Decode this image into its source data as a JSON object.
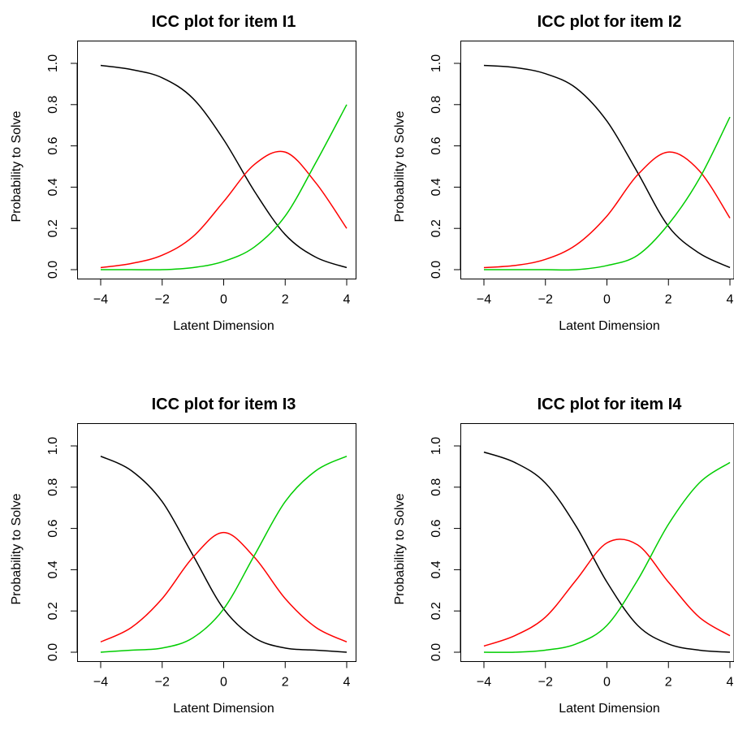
{
  "chart_data": [
    {
      "type": "line",
      "title": "ICC plot for item I1",
      "xlabel": "Latent Dimension",
      "ylabel": "Probability to Solve",
      "xlim": [
        -4,
        4
      ],
      "ylim": [
        0,
        1
      ],
      "xticks": [
        "−4",
        "−2",
        "0",
        "2",
        "4"
      ],
      "yticks": [
        "0.0",
        "0.2",
        "0.4",
        "0.6",
        "0.8",
        "1.0"
      ],
      "series": [
        {
          "color": "#000000",
          "x": [
            -4,
            -3,
            -2,
            -1,
            0,
            1,
            2,
            3,
            4
          ],
          "values": [
            0.99,
            0.97,
            0.93,
            0.83,
            0.63,
            0.38,
            0.17,
            0.06,
            0.01
          ]
        },
        {
          "color": "#ff0000",
          "x": [
            -4,
            -3,
            -2,
            -1,
            0,
            1,
            2,
            3,
            4
          ],
          "values": [
            0.01,
            0.03,
            0.07,
            0.16,
            0.33,
            0.51,
            0.57,
            0.42,
            0.2
          ]
        },
        {
          "color": "#00cd00",
          "x": [
            -4,
            -3,
            -2,
            -1,
            0,
            1,
            2,
            3,
            4
          ],
          "values": [
            0.0,
            0.0,
            0.0,
            0.01,
            0.04,
            0.11,
            0.26,
            0.52,
            0.8
          ]
        }
      ]
    },
    {
      "type": "line",
      "title": "ICC plot for item I2",
      "xlabel": "Latent Dimension",
      "ylabel": "Probability to Solve",
      "xlim": [
        -4,
        4
      ],
      "ylim": [
        0,
        1
      ],
      "xticks": [
        "−4",
        "−2",
        "0",
        "2",
        "4"
      ],
      "yticks": [
        "0.0",
        "0.2",
        "0.4",
        "0.6",
        "0.8",
        "1.0"
      ],
      "series": [
        {
          "color": "#000000",
          "x": [
            -4,
            -3,
            -2,
            -1,
            0,
            1,
            2,
            3,
            4
          ],
          "values": [
            0.99,
            0.98,
            0.95,
            0.88,
            0.72,
            0.47,
            0.21,
            0.08,
            0.01
          ]
        },
        {
          "color": "#ff0000",
          "x": [
            -4,
            -3,
            -2,
            -1,
            0,
            1,
            2,
            3,
            4
          ],
          "values": [
            0.01,
            0.02,
            0.05,
            0.12,
            0.26,
            0.46,
            0.57,
            0.48,
            0.25
          ]
        },
        {
          "color": "#00cd00",
          "x": [
            -4,
            -3,
            -2,
            -1,
            0,
            1,
            2,
            3,
            4
          ],
          "values": [
            0.0,
            0.0,
            0.0,
            0.0,
            0.02,
            0.07,
            0.22,
            0.44,
            0.74
          ]
        }
      ]
    },
    {
      "type": "line",
      "title": "ICC plot for item I3",
      "xlabel": "Latent Dimension",
      "ylabel": "Probability to Solve",
      "xlim": [
        -4,
        4
      ],
      "ylim": [
        0,
        1
      ],
      "xticks": [
        "−4",
        "−2",
        "0",
        "2",
        "4"
      ],
      "yticks": [
        "0.0",
        "0.2",
        "0.4",
        "0.6",
        "0.8",
        "1.0"
      ],
      "series": [
        {
          "color": "#000000",
          "x": [
            -4,
            -3,
            -2,
            -1,
            0,
            1,
            2,
            3,
            4
          ],
          "values": [
            0.95,
            0.88,
            0.73,
            0.47,
            0.21,
            0.07,
            0.02,
            0.01,
            0.0
          ]
        },
        {
          "color": "#ff0000",
          "x": [
            -4,
            -3,
            -2,
            -1,
            0,
            1,
            2,
            3,
            4
          ],
          "values": [
            0.05,
            0.12,
            0.26,
            0.46,
            0.58,
            0.46,
            0.26,
            0.12,
            0.05
          ]
        },
        {
          "color": "#00cd00",
          "x": [
            -4,
            -3,
            -2,
            -1,
            0,
            1,
            2,
            3,
            4
          ],
          "values": [
            0.0,
            0.01,
            0.02,
            0.07,
            0.21,
            0.47,
            0.73,
            0.88,
            0.95
          ]
        }
      ]
    },
    {
      "type": "line",
      "title": "ICC plot for item I4",
      "xlabel": "Latent Dimension",
      "ylabel": "Probability to Solve",
      "xlim": [
        -4,
        4
      ],
      "ylim": [
        0,
        1
      ],
      "xticks": [
        "−4",
        "−2",
        "0",
        "2",
        "4"
      ],
      "yticks": [
        "0.0",
        "0.2",
        "0.4",
        "0.6",
        "0.8",
        "1.0"
      ],
      "series": [
        {
          "color": "#000000",
          "x": [
            -4,
            -3,
            -2,
            -1,
            0,
            1,
            2,
            3,
            4
          ],
          "values": [
            0.97,
            0.92,
            0.82,
            0.61,
            0.34,
            0.13,
            0.04,
            0.01,
            0.0
          ]
        },
        {
          "color": "#ff0000",
          "x": [
            -4,
            -3,
            -2,
            -1,
            0,
            1,
            2,
            3,
            4
          ],
          "values": [
            0.03,
            0.08,
            0.17,
            0.35,
            0.53,
            0.52,
            0.34,
            0.17,
            0.08
          ]
        },
        {
          "color": "#00cd00",
          "x": [
            -4,
            -3,
            -2,
            -1,
            0,
            1,
            2,
            3,
            4
          ],
          "values": [
            0.0,
            0.0,
            0.01,
            0.04,
            0.13,
            0.35,
            0.62,
            0.82,
            0.92
          ]
        }
      ]
    }
  ]
}
